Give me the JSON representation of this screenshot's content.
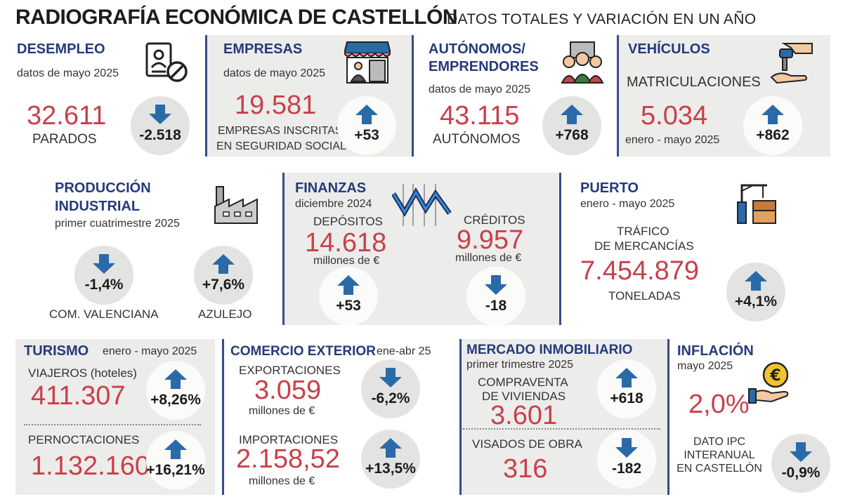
{
  "title": "RADIOGRAFÍA ECONÓMICA DE CASTELLÓN",
  "subtitle": "DATOS TOTALES Y VARIACIÓN EN UN AÑO",
  "colors": {
    "heading": "#253a7a",
    "value": "#c8404a",
    "arrow": "#2a6aa8",
    "panel": "#ececea"
  },
  "desempleo": {
    "heading": "DESEMPLEO",
    "period": "datos de mayo 2025",
    "value": "32.611",
    "label": "PARADOS",
    "change": "-2.518",
    "direction": "down",
    "icon": "unemployed-id-card-icon"
  },
  "empresas": {
    "heading": "EMPRESAS",
    "period": "datos de mayo 2025",
    "value": "19.581",
    "label_1": "EMPRESAS INSCRITAS",
    "label_2": "EN SEGURIDAD SOCIAL",
    "change": "+53",
    "direction": "up",
    "icon": "shop-icon"
  },
  "autonomos": {
    "heading_1": "AUTÓNOMOS/",
    "heading_2": "EMPRENDORES",
    "period": "datos de mayo 2025",
    "value": "43.115",
    "label": "AUTÓNOMOS",
    "change": "+768",
    "direction": "up",
    "icon": "people-group-icon"
  },
  "vehiculos": {
    "heading": "VEHÍCULOS",
    "label": "MATRICULACIONES",
    "value": "5.034",
    "period": "enero - mayo 2025",
    "change": "+862",
    "direction": "up",
    "icon": "car-key-hand-icon"
  },
  "produccion": {
    "heading_1": "PRODUCCIÓN",
    "heading_2": "INDUSTRIAL",
    "period": "primer cuatrimestre 2025",
    "change_1": "-1,4%",
    "label_1": "COM. VALENCIANA",
    "change_2": "+7,6%",
    "label_2": "AZULEJO",
    "icon": "factory-icon"
  },
  "finanzas": {
    "heading": "FINANZAS",
    "period": "diciembre 2024",
    "depositos_label": "DEPÓSITOS",
    "depositos_value": "14.618",
    "depositos_unit": "millones de €",
    "depositos_change": "+53",
    "creditos_label": "CRÉDITOS",
    "creditos_value": "9.957",
    "creditos_unit": "millones de €",
    "creditos_change": "-18",
    "icon": "zigzag-chart-icon"
  },
  "puerto": {
    "heading": "PUERTO",
    "period": "enero - mayo 2025",
    "label_1": "TRÁFICO",
    "label_2": "DE MERCANCÍAS",
    "value": "7.454.879",
    "unit": "TONELADAS",
    "change": "+4,1%",
    "direction": "up",
    "icon": "port-crane-icon"
  },
  "turismo": {
    "heading": "TURISMO",
    "period": "enero - mayo 2025",
    "viajeros_label": "VIAJEROS (hoteles)",
    "viajeros_value": "411.307",
    "viajeros_change": "+8,26%",
    "pernoctaciones_label": "PERNOCTACIONES",
    "pernoctaciones_value": "1.132.160",
    "pernoctaciones_change": "+16,21%"
  },
  "comercio": {
    "heading": "COMERCIO EXTERIOR",
    "period": "ene-abr 25",
    "export_label": "EXPORTACIONES",
    "export_value": "3.059",
    "export_unit": "millones de €",
    "export_change": "-6,2%",
    "import_label": "IMPORTACIONES",
    "import_value": "2.158,52",
    "import_unit": "millones de €",
    "import_change": "+13,5%"
  },
  "inmobiliario": {
    "heading": "MERCADO INMOBILIARIO",
    "period": "primer trimestre 2025",
    "compraventa_label_1": "COMPRAVENTA",
    "compraventa_label_2": "DE VIVIENDAS",
    "compraventa_value": "3.601",
    "compraventa_change": "+618",
    "visados_label": "VISADOS DE OBRA",
    "visados_value": "316",
    "visados_change": "-182"
  },
  "inflacion": {
    "heading": "INFLACIÓN",
    "period": "mayo 2025",
    "value": "2,0%",
    "label_1": "DATO IPC",
    "label_2": "INTERANUAL",
    "label_3": "EN CASTELLÓN",
    "change": "-0,9%",
    "direction": "down",
    "icon": "euro-coin-hand-icon"
  }
}
